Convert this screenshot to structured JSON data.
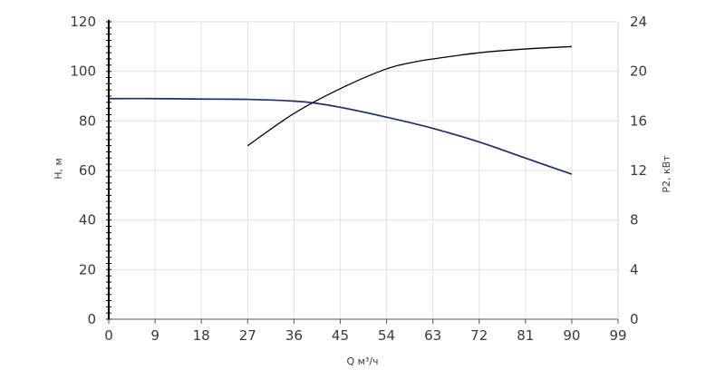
{
  "chart_data": {
    "type": "line",
    "xlabel": "Q м³/ч",
    "ylabel_left": "H, м",
    "ylabel_right": "P2, кВт",
    "xlim": [
      0,
      99
    ],
    "ylim_left": [
      0,
      120
    ],
    "ylim_right": [
      0,
      24
    ],
    "xticks": [
      0,
      9,
      18,
      27,
      36,
      45,
      54,
      63,
      72,
      81,
      90,
      99
    ],
    "yticks_left": [
      0,
      20,
      40,
      60,
      80,
      100,
      120
    ],
    "yticks_right": [
      0,
      4,
      8,
      12,
      16,
      20,
      24
    ],
    "grid": true,
    "series": [
      {
        "axis": "left",
        "color": "#1f2f6b",
        "x": [
          0,
          9,
          18,
          27,
          36,
          40,
          45,
          54,
          63,
          72,
          81,
          90
        ],
        "y": [
          89,
          89,
          88.8,
          88.7,
          88,
          87.2,
          85.5,
          81.5,
          77,
          71.5,
          65,
          58.5
        ]
      },
      {
        "axis": "right",
        "color": "#000000",
        "x": [
          27,
          36,
          45,
          54,
          60,
          63,
          72,
          81,
          90
        ],
        "y": [
          14,
          16.6,
          18.6,
          20.2,
          20.8,
          21,
          21.5,
          21.8,
          22
        ]
      }
    ]
  }
}
